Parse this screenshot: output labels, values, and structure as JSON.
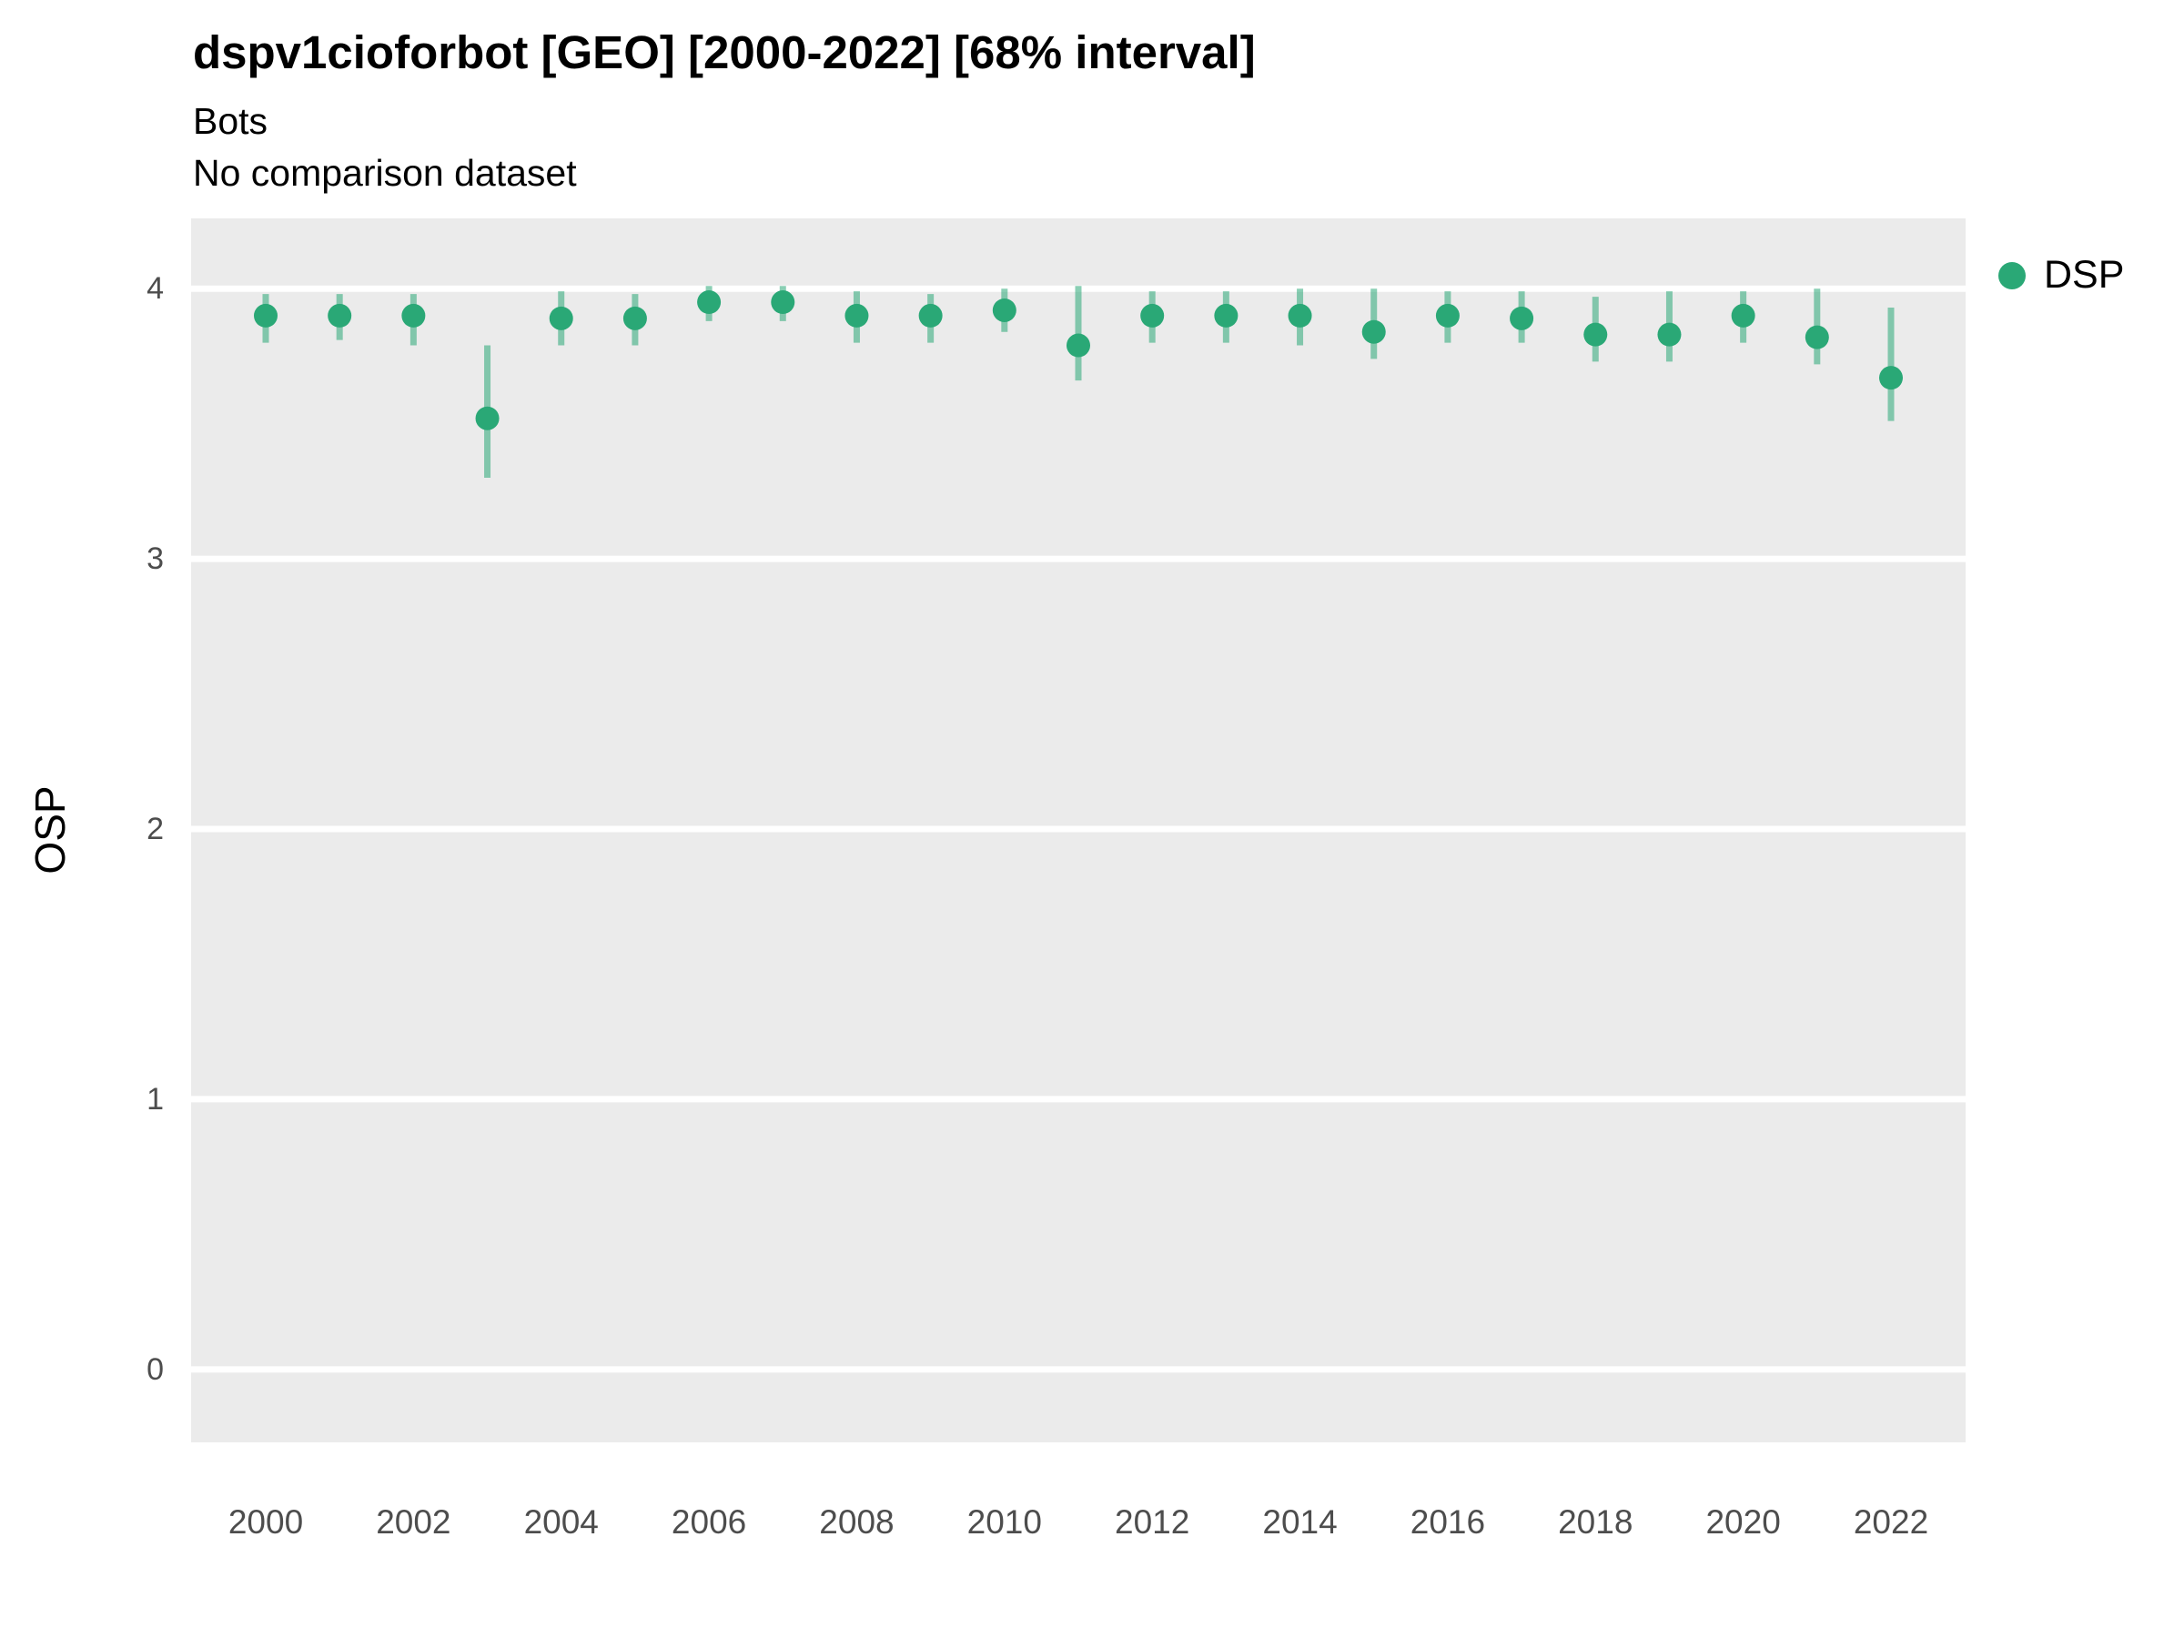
{
  "header": {
    "title": "dspv1cioforbot [GEO] [2000-2022] [68% interval]",
    "subtitle": "Bots",
    "note": "No comparison dataset"
  },
  "legend": {
    "items": [
      {
        "label": "DSP",
        "color": "#2aa876"
      }
    ]
  },
  "chart_data": {
    "type": "pointrange",
    "title": "dspv1cioforbot [GEO] [2000-2022] [68% interval]",
    "subtitle": "Bots",
    "note": "No comparison dataset",
    "xlabel": "",
    "ylabel": "OSP",
    "ylim": [
      -0.27,
      4.26
    ],
    "yticks": [
      0,
      1,
      2,
      3,
      4
    ],
    "xticks": [
      2000,
      2002,
      2004,
      2006,
      2008,
      2010,
      2012,
      2014,
      2016,
      2018,
      2020,
      2022
    ],
    "x": [
      2000,
      2001,
      2002,
      2003,
      2004,
      2005,
      2006,
      2007,
      2008,
      2009,
      2010,
      2011,
      2012,
      2013,
      2014,
      2015,
      2016,
      2017,
      2018,
      2019,
      2020,
      2021,
      2022
    ],
    "series": [
      {
        "name": "DSP",
        "color": "#2aa876",
        "interval": "68%",
        "values": [
          3.9,
          3.9,
          3.9,
          3.52,
          3.89,
          3.89,
          3.95,
          3.95,
          3.9,
          3.9,
          3.92,
          3.79,
          3.9,
          3.9,
          3.9,
          3.84,
          3.9,
          3.89,
          3.83,
          3.83,
          3.9,
          3.82,
          3.67
        ],
        "low": [
          3.8,
          3.81,
          3.79,
          3.3,
          3.79,
          3.79,
          3.88,
          3.88,
          3.8,
          3.8,
          3.84,
          3.66,
          3.8,
          3.8,
          3.79,
          3.74,
          3.8,
          3.8,
          3.73,
          3.73,
          3.8,
          3.72,
          3.51
        ],
        "high": [
          3.98,
          3.98,
          3.98,
          3.79,
          3.99,
          3.98,
          4.01,
          4.01,
          3.99,
          3.98,
          4.0,
          4.01,
          3.99,
          3.99,
          4.0,
          4.0,
          3.99,
          3.99,
          3.97,
          3.99,
          3.99,
          4.0,
          3.93
        ]
      }
    ],
    "legend_position": "right",
    "panel_background": "#ebebeb",
    "grid": "white horizontal major gridlines"
  }
}
